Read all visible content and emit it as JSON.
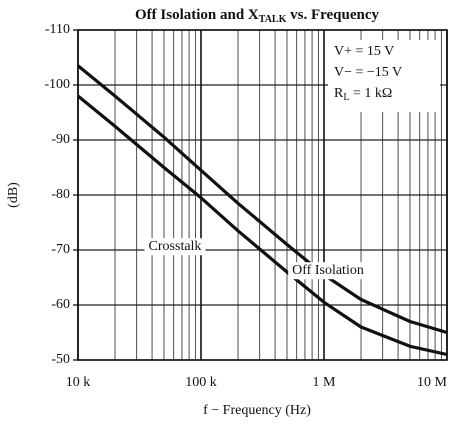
{
  "chart_data": {
    "type": "line",
    "title": {
      "text": "Off Isolation and X",
      "subscript": "TALK",
      "rest": " vs. Frequency"
    },
    "xlabel": "f − Frequency (Hz)",
    "ylabel": "(dB)",
    "annotations": [
      "V+ = 15 V",
      "V− = −15 V"
    ],
    "annotation_rl": {
      "text": "R",
      "subscript": "L",
      "rest": " = 1 kΩ"
    },
    "log_x": true,
    "x": [
      10000,
      20000,
      50000,
      100000,
      200000,
      500000,
      1000000,
      2000000,
      5000000,
      10000000
    ],
    "series": [
      {
        "name": "Off Isolation",
        "color": "#111111",
        "values": [
          -103.5,
          -98,
          -90.5,
          -84.5,
          -78.5,
          -71,
          -65.5,
          -61,
          -57,
          -55
        ]
      },
      {
        "name": "Crosstalk",
        "color": "#111111",
        "values": [
          -98,
          -92.5,
          -85,
          -79.5,
          -73.5,
          -66,
          -60.5,
          -56,
          -52.5,
          -51
        ]
      }
    ],
    "xlim": [
      10000,
      10000000
    ],
    "xticks": [
      {
        "value": 10000,
        "label": "10 k"
      },
      {
        "value": 100000,
        "label": "100 k"
      },
      {
        "value": 1000000,
        "label": "1 M"
      },
      {
        "value": 10000000,
        "label": "10 M"
      }
    ],
    "xminorticks": [
      20000,
      30000,
      40000,
      50000,
      60000,
      70000,
      80000,
      90000,
      200000,
      300000,
      400000,
      500000,
      600000,
      700000,
      800000,
      900000,
      2000000,
      3000000,
      4000000,
      5000000,
      6000000,
      7000000,
      8000000,
      9000000
    ],
    "ylim": [
      -50,
      -110
    ],
    "yticks": [
      -110,
      -100,
      -90,
      -80,
      -70,
      -60,
      -50
    ],
    "grid": true
  }
}
